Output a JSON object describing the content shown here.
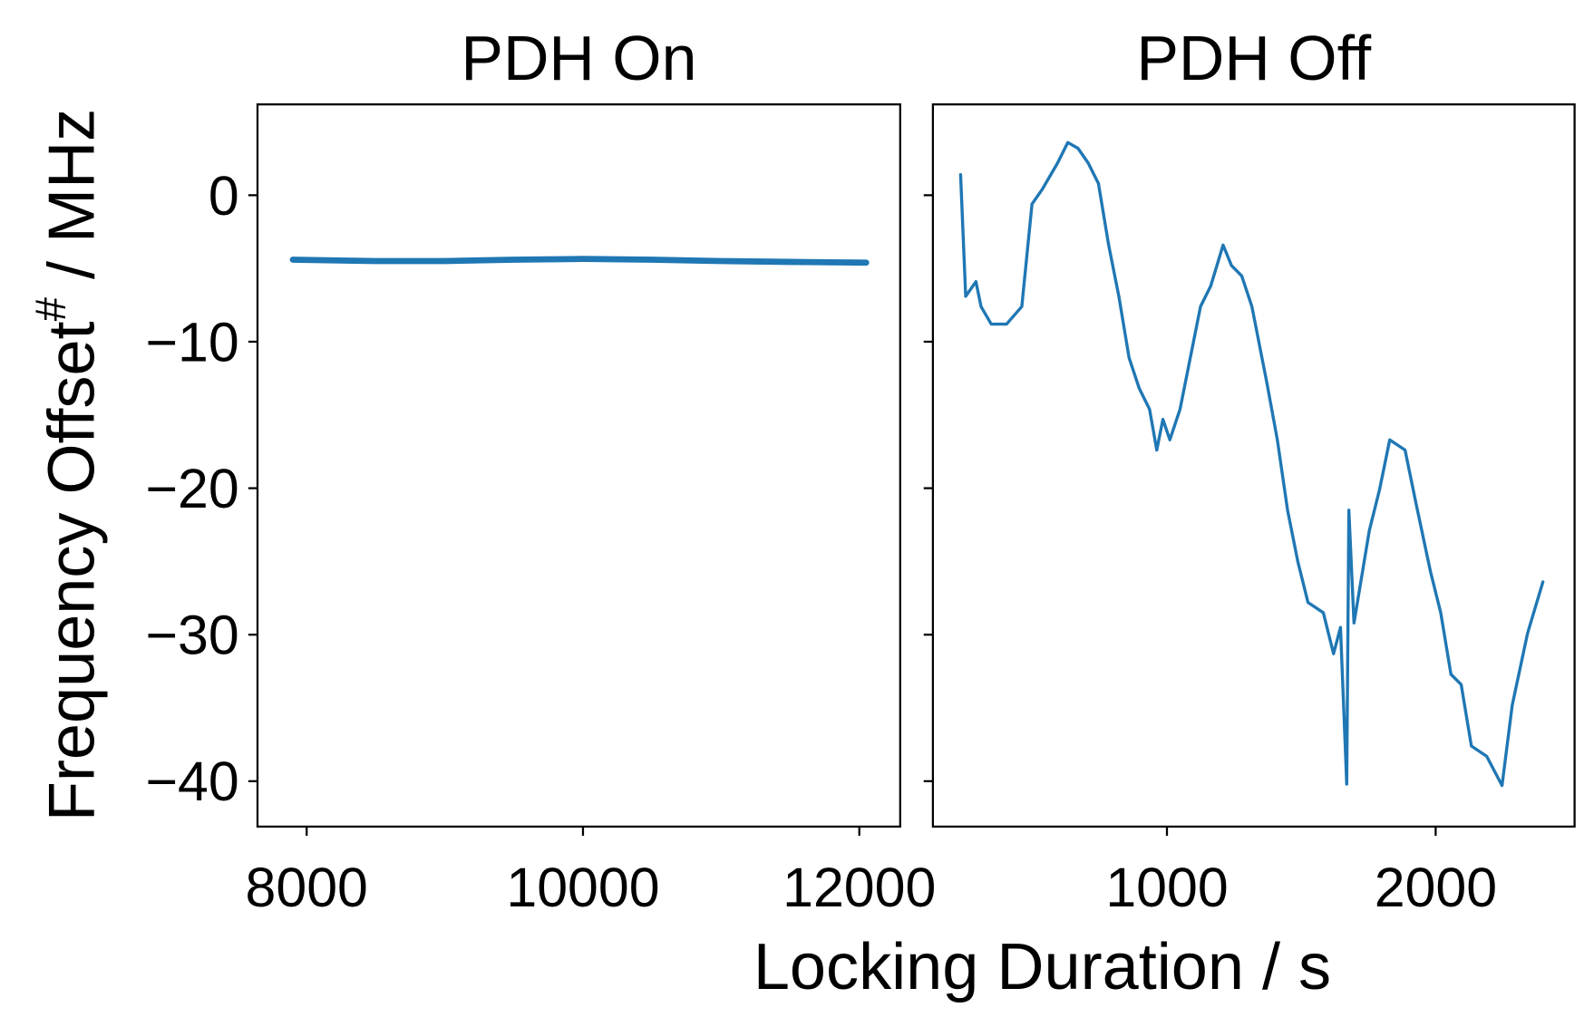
{
  "chart_data": [
    {
      "type": "line",
      "title": "PDH On",
      "x": [
        7900,
        8500,
        9000,
        9500,
        10000,
        10500,
        11000,
        11500,
        12050
      ],
      "series": [
        {
          "color": "#1f77b4",
          "values": [
            -4.4,
            -4.5,
            -4.5,
            -4.4,
            -4.35,
            -4.4,
            -4.5,
            -4.55,
            -4.6
          ]
        }
      ],
      "xlim": [
        7644,
        12296
      ],
      "xticks": [
        8000,
        10000,
        12000
      ],
      "ylim": [
        -43.1,
        6.2
      ],
      "yticks": [
        0,
        {
          "value": -10,
          "label": "−10"
        },
        {
          "value": -20,
          "label": "−20"
        },
        {
          "value": -30,
          "label": "−30"
        },
        {
          "value": -40,
          "label": "−40"
        }
      ],
      "line_width": 6
    },
    {
      "type": "line",
      "title": "PDH Off",
      "x": [
        232,
        251,
        289,
        308,
        346,
        403,
        460,
        498,
        536,
        593,
        631,
        669,
        707,
        745,
        783,
        821,
        859,
        897,
        935,
        962,
        985,
        1011,
        1049,
        1087,
        1125,
        1163,
        1209,
        1240,
        1278,
        1316,
        1373,
        1411,
        1449,
        1487,
        1525,
        1582,
        1620,
        1646,
        1669,
        1677,
        1696,
        1753,
        1791,
        1829,
        1886,
        1924,
        1981,
        2019,
        2057,
        2095,
        2133,
        2190,
        2247,
        2285,
        2342,
        2399
      ],
      "series": [
        {
          "color": "#1f77b4",
          "values": [
            1.4,
            -6.9,
            -5.9,
            -7.6,
            -8.8,
            -8.8,
            -7.6,
            -0.6,
            0.4,
            2.2,
            3.6,
            3.2,
            2.2,
            0.8,
            -3.4,
            -6.9,
            -11.1,
            -13.2,
            -14.6,
            -17.4,
            -15.3,
            -16.7,
            -14.6,
            -11.1,
            -7.6,
            -6.2,
            -3.4,
            -4.8,
            -5.5,
            -7.6,
            -12.9,
            -16.7,
            -21.5,
            -25,
            -27.8,
            -28.5,
            -31.3,
            -29.5,
            -40.2,
            -21.5,
            -29.2,
            -22.9,
            -20.1,
            -16.7,
            -17.4,
            -20.8,
            -25.7,
            -28.5,
            -32.7,
            -33.4,
            -37.6,
            -38.3,
            -40.3,
            -34.8,
            -29.9,
            -26.4
          ]
        }
      ],
      "xlim": [
        129,
        2517
      ],
      "xticks": [
        1000,
        2000
      ],
      "ylim": [
        -43.1,
        6.2
      ],
      "sharey": true,
      "line_width": 3
    }
  ],
  "xlabel": "Locking Duration / s",
  "ylabel": [
    "Frequency Offset",
    "#",
    " / MHz"
  ]
}
